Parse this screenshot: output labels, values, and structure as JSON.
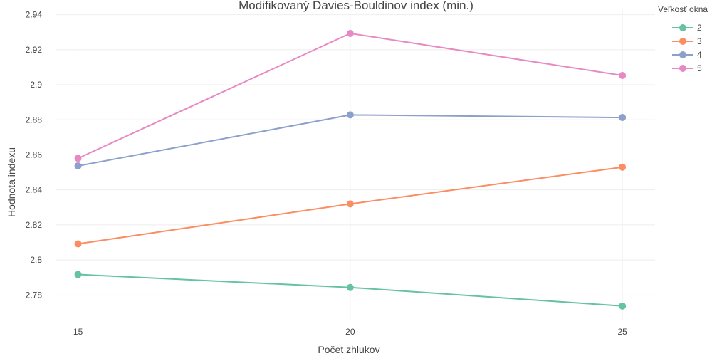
{
  "chart_data": {
    "type": "line",
    "title": "Modifikovaný Davies-Bouldinov index (min.)",
    "xlabel": "Počet zhlukov",
    "ylabel": "Hodnota indexu",
    "x": [
      15,
      20,
      25
    ],
    "xticks": [
      "15",
      "20",
      "25"
    ],
    "yticks": [
      "2.78",
      "2.8",
      "2.82",
      "2.84",
      "2.86",
      "2.88",
      "2.9",
      "2.92",
      "2.94"
    ],
    "xlim": [
      14.6,
      25.6
    ],
    "ylim": [
      2.7655,
      2.9435
    ],
    "grid": true,
    "legend": {
      "title": "Veľkosť okna",
      "placement": "top-right"
    },
    "series": [
      {
        "name": "2",
        "color": "#66c2a5",
        "values": [
          2.7917,
          2.7843,
          2.7737
        ]
      },
      {
        "name": "3",
        "color": "#fc8d62",
        "values": [
          2.8092,
          2.832,
          2.853
        ]
      },
      {
        "name": "4",
        "color": "#8da0cb",
        "values": [
          2.8537,
          2.8828,
          2.8813
        ]
      },
      {
        "name": "5",
        "color": "#e78ac3",
        "values": [
          2.858,
          2.9293,
          2.9053
        ]
      }
    ]
  }
}
